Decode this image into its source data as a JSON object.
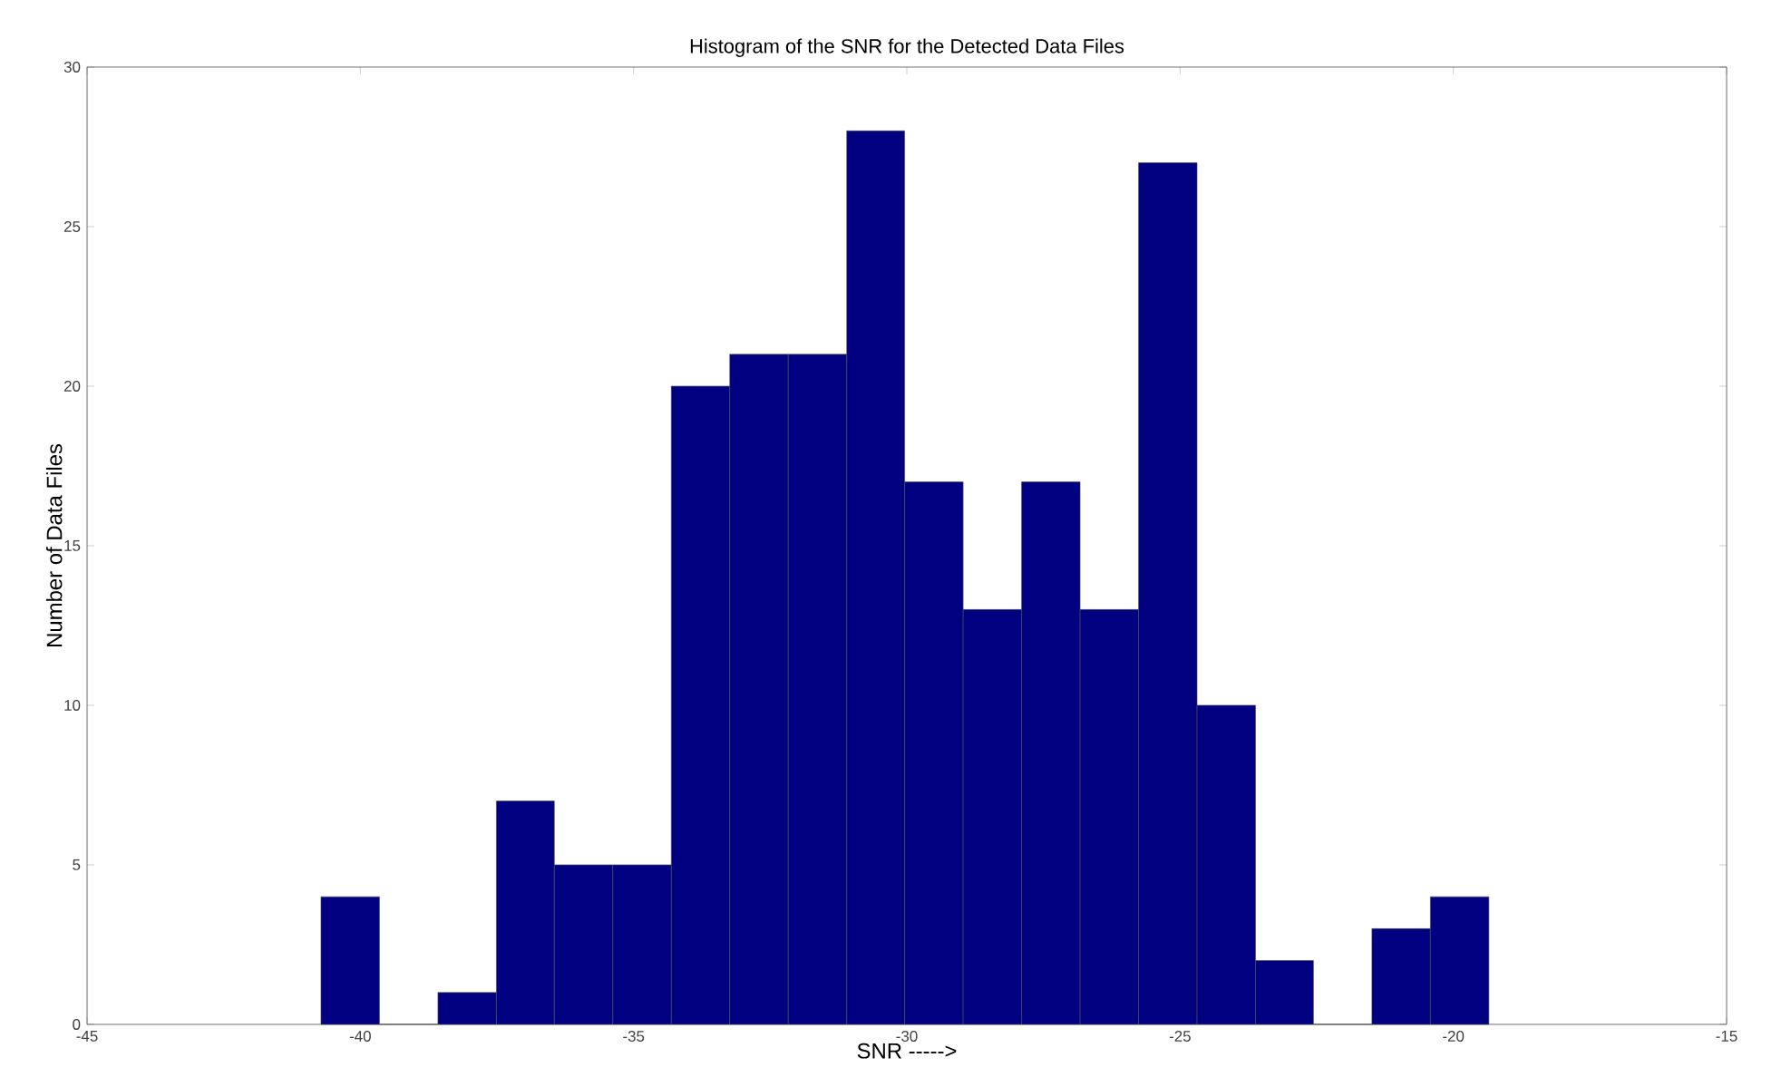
{
  "chart_data": {
    "type": "histogram",
    "title": "Histogram of the SNR for the Detected Data Files",
    "xlabel": "SNR ----->",
    "ylabel": "Number of Data Files",
    "color": "#000080",
    "bins": [
      -40.72,
      -39.65,
      -38.58,
      -37.51,
      -36.45,
      -35.38,
      -34.31,
      -33.24,
      -32.17,
      -31.1,
      -30.04,
      -28.97,
      -27.9,
      -26.83,
      -25.76,
      -24.69,
      -23.62,
      -22.56,
      -21.49,
      -20.42,
      -19.35
    ],
    "values": [
      4,
      0,
      1,
      7,
      5,
      5,
      20,
      21,
      21,
      28,
      17,
      13,
      17,
      13,
      27,
      10,
      2,
      0,
      3,
      4
    ],
    "xlim": [
      -45,
      -15
    ],
    "xticks": [
      -45,
      -40,
      -35,
      -30,
      -25,
      -20,
      -15
    ],
    "ylim": [
      0,
      30
    ],
    "yticks": [
      0,
      5,
      10,
      15,
      20,
      25,
      30
    ],
    "grid": false
  }
}
